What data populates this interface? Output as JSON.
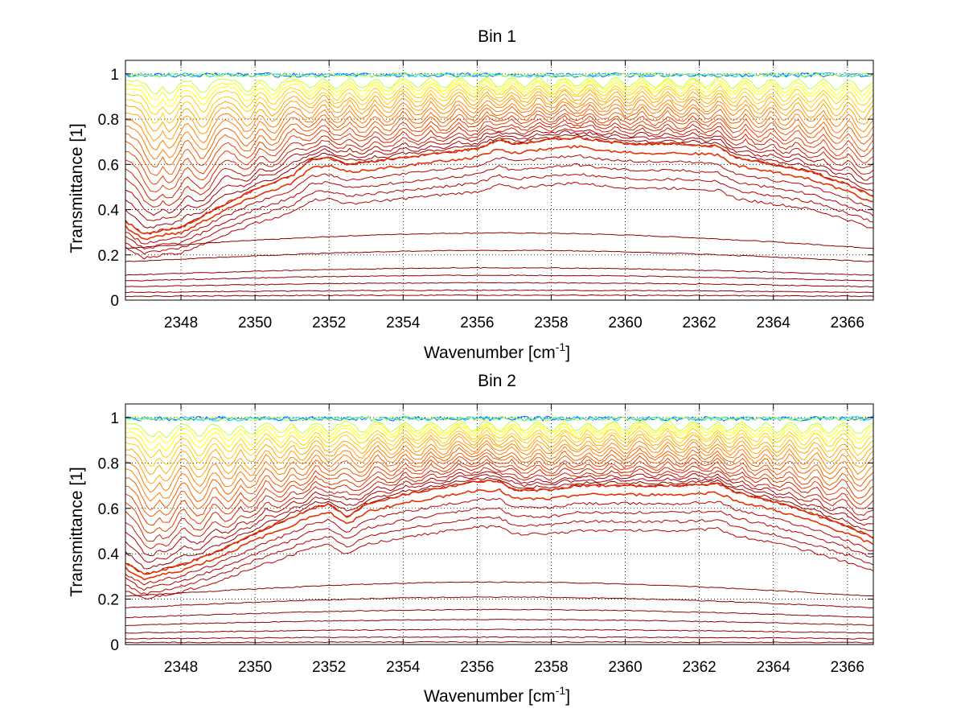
{
  "chart_data": [
    {
      "type": "line",
      "title": "Bin 1",
      "xlabel": "Wavenumber [cm",
      "xlabel_sup": "-1",
      "xlabel_end": "]",
      "ylabel": "Transmittance [1]",
      "xlim": [
        2346.5,
        2366.7
      ],
      "ylim": [
        0,
        1.06
      ],
      "grid": true,
      "x_ticks": [
        "2348",
        "2350",
        "2352",
        "2354",
        "2356",
        "2358",
        "2360",
        "2362",
        "2364",
        "2366"
      ],
      "y_ticks": [
        "0",
        "0.2",
        "0.4",
        "0.6",
        "0.8",
        "1"
      ],
      "colors": [
        "#00008f",
        "#0060ff",
        "#00d0ff",
        "#40ffbf",
        "#bfff40",
        "#ffff00",
        "#ffd000",
        "#ffa500",
        "#ff8000",
        "#f06000",
        "#e84000",
        "#d02000",
        "#b00000",
        "#900000",
        "#800000"
      ],
      "profile": {
        "x": [
          2346.5,
          2347.0,
          2347.5,
          2348.0,
          2349.0,
          2350.0,
          2351.0,
          2351.5,
          2352.0,
          2352.5,
          2353.0,
          2354.0,
          2355.0,
          2356.0,
          2356.6,
          2357.0,
          2358.0,
          2358.7,
          2359.5,
          2360.5,
          2361.5,
          2362.5,
          2363.0,
          2364.0,
          2365.0,
          2366.0,
          2366.7
        ],
        "y": [
          0.35,
          0.29,
          0.31,
          0.32,
          0.41,
          0.49,
          0.55,
          0.62,
          0.63,
          0.6,
          0.61,
          0.63,
          0.65,
          0.67,
          0.71,
          0.69,
          0.71,
          0.72,
          0.7,
          0.69,
          0.69,
          0.68,
          0.63,
          0.6,
          0.57,
          0.51,
          0.46
        ]
      },
      "lower_lines": [
        0.27,
        0.2,
        0.13,
        0.1,
        0.07,
        0.04,
        0.02
      ],
      "dips": [
        2347.3,
        2347.7,
        2348.6,
        2349.8,
        2350.5,
        2351.5,
        2352.2,
        2352.9,
        2353.6,
        2354.4,
        2355.1,
        2355.9,
        2356.6,
        2357.3,
        2358.0,
        2358.7,
        2359.4,
        2360.1,
        2360.8,
        2361.5,
        2362.2,
        2362.9,
        2363.6,
        2364.3,
        2365.0,
        2365.7,
        2366.4
      ]
    },
    {
      "type": "line",
      "title": "Bin 2",
      "xlabel": "Wavenumber [cm",
      "xlabel_sup": "-1",
      "xlabel_end": "]",
      "ylabel": "Transmittance [1]",
      "xlim": [
        2346.5,
        2366.7
      ],
      "ylim": [
        0,
        1.06
      ],
      "grid": true,
      "x_ticks": [
        "2348",
        "2350",
        "2352",
        "2354",
        "2356",
        "2358",
        "2360",
        "2362",
        "2364",
        "2366"
      ],
      "y_ticks": [
        "0",
        "0.2",
        "0.4",
        "0.6",
        "0.8",
        "1"
      ],
      "colors": [
        "#00008f",
        "#0060ff",
        "#00d0ff",
        "#40ffbf",
        "#bfff40",
        "#ffff00",
        "#ffd000",
        "#ffa500",
        "#ff8000",
        "#f06000",
        "#e84000",
        "#d02000",
        "#b00000",
        "#900000",
        "#800000"
      ],
      "profile": {
        "x": [
          2346.5,
          2347.0,
          2347.5,
          2348.0,
          2349.0,
          2350.0,
          2351.0,
          2351.5,
          2352.0,
          2352.5,
          2353.0,
          2354.0,
          2355.0,
          2356.0,
          2356.6,
          2357.0,
          2358.0,
          2358.7,
          2359.5,
          2360.5,
          2361.5,
          2362.5,
          2363.0,
          2364.0,
          2365.0,
          2366.0,
          2366.7
        ],
        "y": [
          0.36,
          0.31,
          0.33,
          0.35,
          0.41,
          0.49,
          0.56,
          0.6,
          0.62,
          0.56,
          0.62,
          0.66,
          0.69,
          0.72,
          0.72,
          0.68,
          0.68,
          0.7,
          0.7,
          0.7,
          0.7,
          0.71,
          0.67,
          0.63,
          0.58,
          0.52,
          0.47
        ]
      },
      "lower_lines": [
        0.25,
        0.19,
        0.14,
        0.1,
        0.06,
        0.03,
        0.01
      ],
      "dips": [
        2347.2,
        2347.6,
        2348.5,
        2349.3,
        2349.9,
        2350.7,
        2351.3,
        2352.0,
        2352.9,
        2353.7,
        2354.4,
        2355.1,
        2355.9,
        2356.6,
        2357.3,
        2358.0,
        2358.7,
        2359.3,
        2360.0,
        2360.8,
        2361.5,
        2362.2,
        2362.8,
        2363.5,
        2364.1,
        2364.8,
        2365.5,
        2366.3
      ]
    }
  ]
}
